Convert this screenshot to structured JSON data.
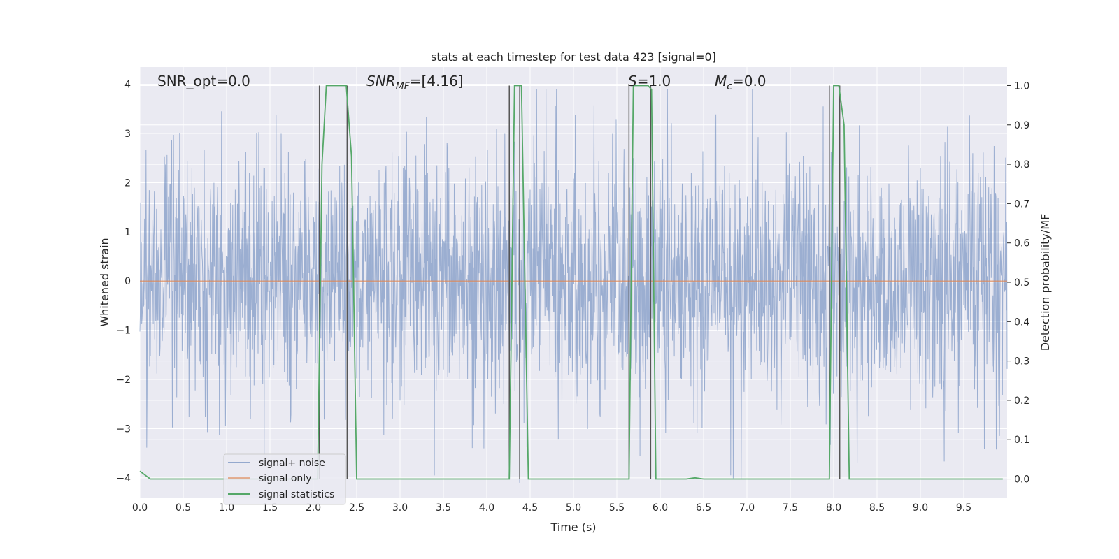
{
  "chart_data": {
    "type": "line",
    "title": "stats at each timestep for test data 423 [signal=0]",
    "xlabel": "Time (s)",
    "ylabel": "Whitened strain",
    "y2label": "Detection probability/MF",
    "xlim": [
      0,
      10
    ],
    "ylim": [
      -4.4,
      4.35
    ],
    "y2lim": [
      -0.047,
      1.047
    ],
    "x_ticks": [
      "0.0",
      "0.5",
      "1.0",
      "1.5",
      "2.0",
      "2.5",
      "3.0",
      "3.5",
      "4.0",
      "4.5",
      "5.0",
      "5.5",
      "6.0",
      "6.5",
      "7.0",
      "7.5",
      "8.0",
      "8.5",
      "9.0",
      "9.5"
    ],
    "y_ticks": [
      "−4",
      "−3",
      "−2",
      "−1",
      "0",
      "1",
      "2",
      "3",
      "4"
    ],
    "y2_ticks": [
      "0.0",
      "0.1",
      "0.2",
      "0.3",
      "0.4",
      "0.5",
      "0.6",
      "0.7",
      "0.8",
      "0.9",
      "1.0"
    ],
    "grid": true,
    "annotations": {
      "snr_opt": "SNR_opt=0.0",
      "snr_mf_sym": "SNR",
      "snr_mf_sub": "MF",
      "snr_mf_val": "=[4.16]",
      "s_sym": "S",
      "s_val": "=1.0",
      "mc_sym": "M",
      "mc_sub": "c",
      "mc_val": "=0.0"
    },
    "legend": {
      "placement": "lower-left",
      "entries": [
        "signal+ noise",
        "signal only",
        "signal statistics"
      ]
    },
    "series": [
      {
        "name": "signal+ noise",
        "color": "#4c72b0",
        "description_values": "white noise, approx range [-4.1, 3.9]",
        "x_range": [
          0,
          10
        ],
        "amplitude_max": 3.9,
        "amplitude_min": -4.1
      },
      {
        "name": "signal only",
        "color": "#dd8452",
        "x": [
          0,
          10
        ],
        "values": [
          0,
          0
        ]
      },
      {
        "name": "signal statistics",
        "color": "#55a868",
        "axis": "right",
        "x": [
          0.0,
          0.12,
          2.05,
          2.1,
          2.15,
          2.38,
          2.44,
          2.5,
          4.26,
          4.32,
          4.4,
          4.48,
          5.64,
          5.69,
          5.76,
          5.86,
          5.9,
          5.95,
          6.05,
          6.3,
          6.4,
          6.5,
          7.95,
          8.0,
          8.06,
          8.12,
          8.18,
          9.95
        ],
        "values": [
          0.02,
          0.0,
          0.0,
          0.8,
          1.0,
          1.0,
          0.82,
          0.0,
          0.0,
          1.0,
          1.0,
          0.0,
          0.0,
          1.0,
          1.0,
          1.0,
          0.99,
          0.0,
          0.0,
          0.0,
          0.003,
          0.0,
          0.0,
          1.0,
          1.0,
          0.9,
          0.0,
          0.0
        ]
      }
    ],
    "vertical_markers": [
      2.07,
      2.39,
      4.26,
      4.38,
      5.64,
      5.89,
      7.95,
      8.07
    ]
  }
}
